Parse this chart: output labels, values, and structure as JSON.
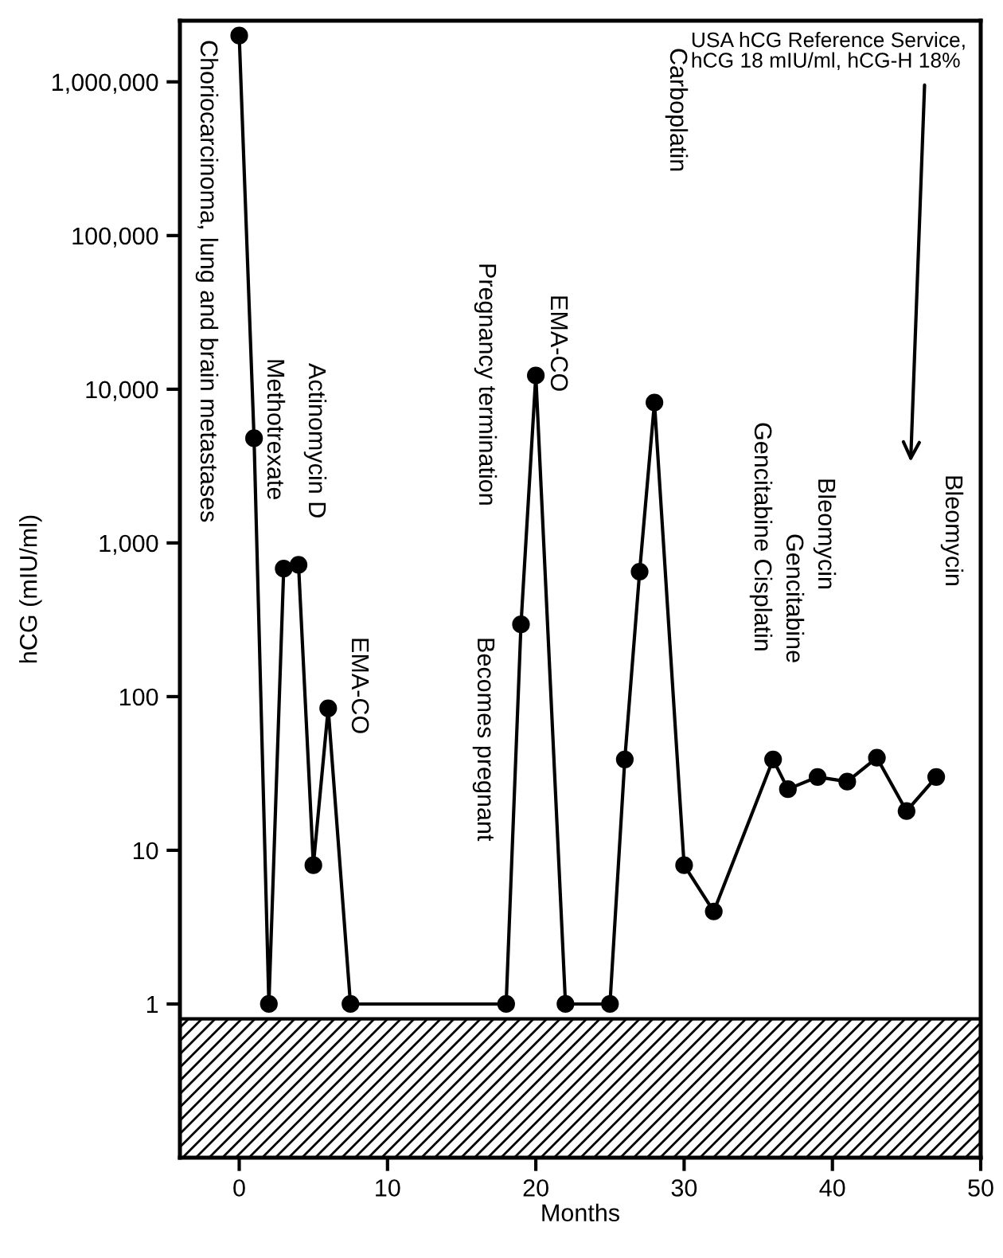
{
  "chart_data": {
    "type": "line",
    "xlabel": "Months",
    "ylabel": "hCG (mIU/ml)",
    "x": [
      0,
      1,
      2,
      3,
      4,
      5,
      6,
      7.5,
      18,
      19,
      20,
      22,
      25,
      26,
      27,
      28,
      30,
      32,
      36,
      37,
      39,
      41,
      43,
      45,
      47
    ],
    "series": [
      {
        "color": "#000000",
        "values": [
          2000000,
          4800,
          1,
          680,
          720,
          8,
          84,
          1,
          1,
          295,
          12300,
          1,
          1,
          39,
          650,
          8200,
          8,
          4,
          39,
          25,
          30,
          28,
          40,
          18,
          30
        ]
      }
    ],
    "log": "y",
    "marker": "circle",
    "line_style": "solid",
    "grid": false,
    "xlim": [
      -4,
      50
    ],
    "xticks": [
      0,
      10,
      20,
      30,
      40,
      50
    ],
    "ylim": [
      0.1,
      2500000
    ],
    "yticks": [
      {
        "value": 1,
        "label": "1"
      },
      {
        "value": 10,
        "label": "10"
      },
      {
        "value": 100,
        "label": "100"
      },
      {
        "value": 1000,
        "label": "1,000"
      },
      {
        "value": 10000,
        "label": "10,000"
      },
      {
        "value": 100000,
        "label": "100,000"
      },
      {
        "value": 1000000,
        "label": "1,000,000"
      }
    ],
    "bands": [
      {
        "axis": "y",
        "from": 0.1,
        "to": 0.8,
        "color": "#000000"
      }
    ],
    "annotations": [
      "Choriocarcinoma, lung and brain metastases",
      "Methotrexate",
      "Actinomycin D",
      "EMA-CO",
      "Becomes pregnant",
      "Pregnancy termination",
      "EMA-CO",
      "Carboplatin",
      "Gencitabine Cisplatin",
      "Gencitabine",
      "Bleomycin",
      "Bleomycin",
      "USA hCG Reference Service,\nhCG 18 mIU/ml, hCG-H 18%"
    ]
  }
}
